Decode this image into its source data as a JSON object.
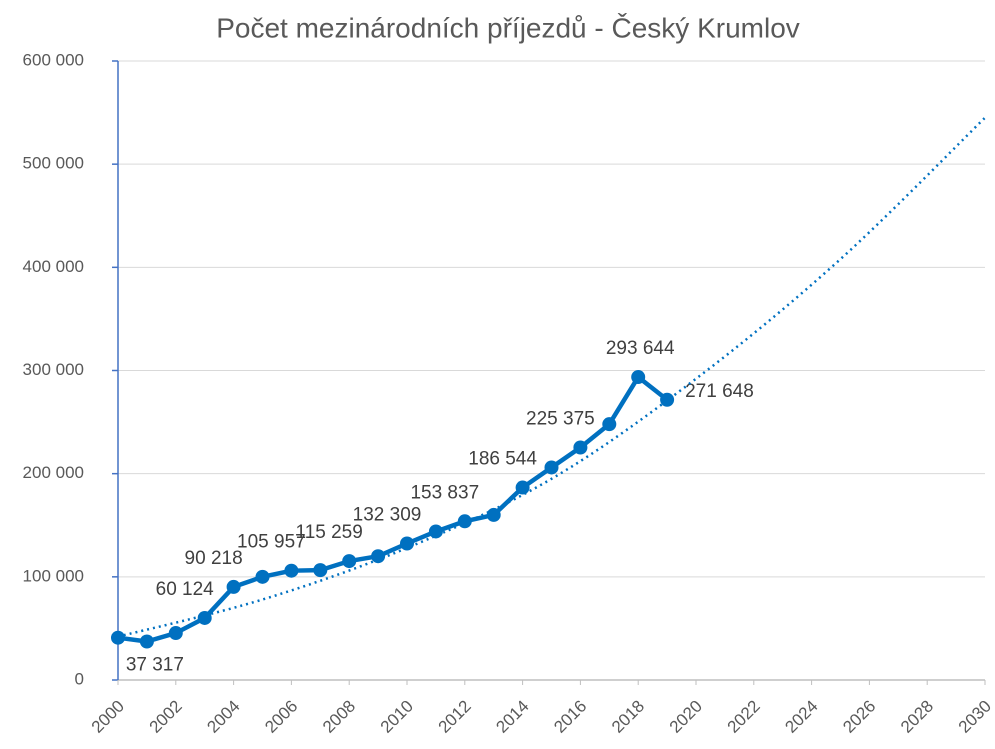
{
  "chart_data": {
    "type": "line",
    "title": "Počet mezinárodních příjezdů - Český Krumlov",
    "xlim": [
      2000,
      2030
    ],
    "xticks": [
      2000,
      2002,
      2004,
      2006,
      2008,
      2010,
      2012,
      2014,
      2016,
      2018,
      2020,
      2022,
      2024,
      2026,
      2028,
      2030
    ],
    "ylim": [
      0,
      600000
    ],
    "yticks": [
      0,
      {
        "value": 100000,
        "label": "100 000"
      },
      {
        "value": 200000,
        "label": "200 000"
      },
      {
        "value": 300000,
        "label": "300 000"
      },
      {
        "value": 400000,
        "label": "400 000"
      },
      {
        "value": 500000,
        "label": "500 000"
      },
      {
        "value": 600000,
        "label": "600 000"
      }
    ],
    "grid": true,
    "series": [
      {
        "color": "#0070c0",
        "style": "solid",
        "x": [
          2000,
          2001,
          2002,
          2003,
          2004,
          2005,
          2006,
          2007,
          2008,
          2009,
          2010,
          2011,
          2012,
          2013,
          2014,
          2015,
          2016,
          2017,
          2018,
          2019
        ],
        "values": [
          41000,
          37317,
          45500,
          60124,
          90218,
          100000,
          105957,
          106500,
          115259,
          120000,
          132309,
          144000,
          153837,
          160000,
          186544,
          206000,
          225375,
          248000,
          293644,
          271648
        ],
        "value_labels": [
          null,
          "37 317",
          null,
          "60 124",
          "90 218",
          null,
          "105 957",
          null,
          "115 259",
          null,
          "132 309",
          null,
          "153 837",
          null,
          "186 544",
          null,
          "225 375",
          null,
          "293 644",
          "271 648"
        ]
      },
      {
        "color": "#0070c0",
        "style": "dotted",
        "x": [
          2000,
          2005,
          2010,
          2015,
          2020,
          2025,
          2030
        ],
        "values": [
          42000,
          78000,
          128000,
          195000,
          292000,
          408000,
          545000
        ]
      }
    ]
  }
}
